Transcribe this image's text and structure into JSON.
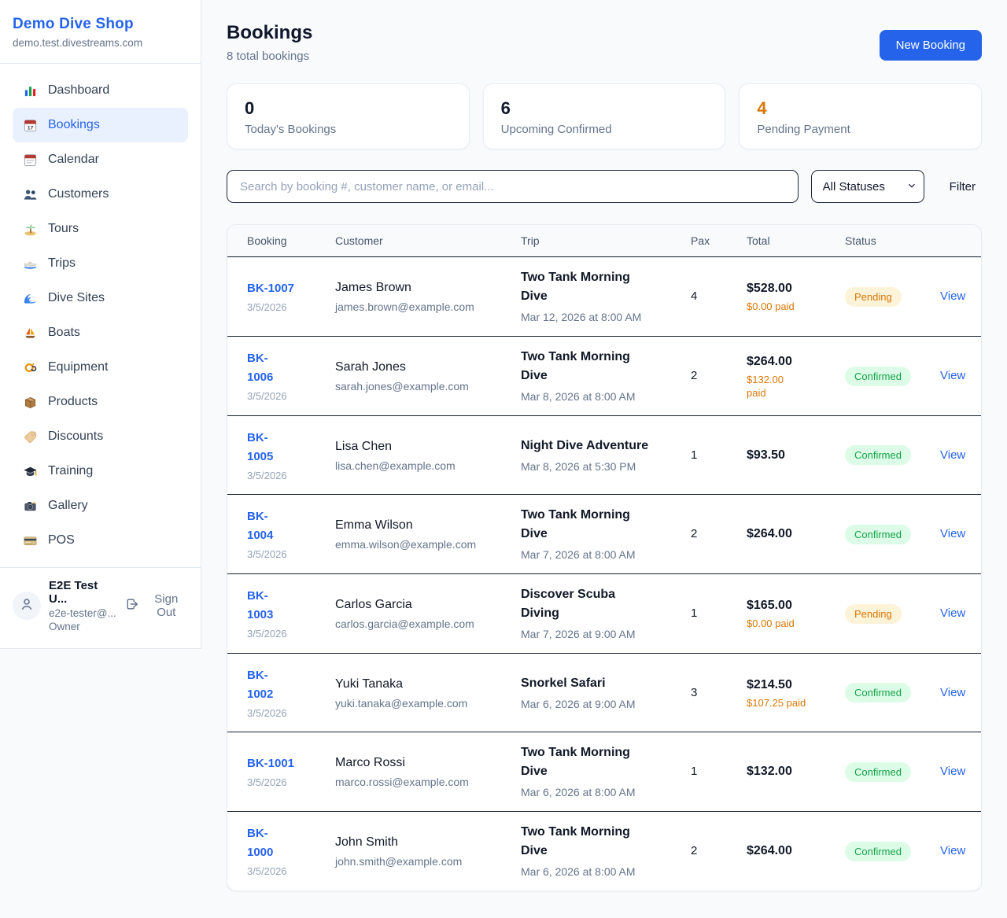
{
  "brand": {
    "name": "Demo Dive Shop",
    "domain": "demo.test.divestreams.com"
  },
  "sidebar": {
    "items": [
      {
        "icon": "dashboard-icon",
        "label": "Dashboard",
        "active": false
      },
      {
        "icon": "bookings-calendar-icon",
        "label": "Bookings",
        "active": true
      },
      {
        "icon": "calendar-icon",
        "label": "Calendar",
        "active": false
      },
      {
        "icon": "customers-icon",
        "label": "Customers",
        "active": false
      },
      {
        "icon": "tours-island-icon",
        "label": "Tours",
        "active": false
      },
      {
        "icon": "trips-speedboat-icon",
        "label": "Trips",
        "active": false
      },
      {
        "icon": "dive-sites-wave-icon",
        "label": "Dive Sites",
        "active": false
      },
      {
        "icon": "boats-sailboat-icon",
        "label": "Boats",
        "active": false
      },
      {
        "icon": "equipment-mask-icon",
        "label": "Equipment",
        "active": false
      },
      {
        "icon": "products-box-icon",
        "label": "Products",
        "active": false
      },
      {
        "icon": "discounts-tag-icon",
        "label": "Discounts",
        "active": false
      },
      {
        "icon": "training-cap-icon",
        "label": "Training",
        "active": false
      },
      {
        "icon": "gallery-camera-icon",
        "label": "Gallery",
        "active": false
      },
      {
        "icon": "pos-card-icon",
        "label": "POS",
        "active": false
      }
    ],
    "user": {
      "name": "E2E Test U...",
      "email": "e2e-tester@...",
      "role": "Owner",
      "sign_out": "Sign Out"
    }
  },
  "header": {
    "title": "Bookings",
    "subtitle": "8 total bookings",
    "new_booking_label": "New Booking"
  },
  "stats": [
    {
      "value": "0",
      "label": "Today's Bookings",
      "color": "#0f172a"
    },
    {
      "value": "6",
      "label": "Upcoming Confirmed",
      "color": "#0f172a"
    },
    {
      "value": "4",
      "label": "Pending Payment",
      "color": "#d97706"
    }
  ],
  "filters": {
    "search_placeholder": "Search by booking #, customer name, or email...",
    "status_select_value": "All Statuses",
    "filter_label": "Filter"
  },
  "table": {
    "columns": [
      "Booking",
      "Customer",
      "Trip",
      "Pax",
      "Total",
      "Status"
    ],
    "view_label": "View",
    "rows": [
      {
        "id_lines": [
          "BK-1007"
        ],
        "date": "3/5/2026",
        "customer": "James Brown",
        "email": "james.brown@example.com",
        "trip_lines": [
          "Two Tank Morning",
          "Dive"
        ],
        "trip_when": "Mar 12, 2026 at 8:00 AM",
        "pax": "4",
        "total": "$528.00",
        "paid_lines": [
          "$0.00 paid"
        ],
        "status": "Pending"
      },
      {
        "id_lines": [
          "BK-",
          "1006"
        ],
        "date": "3/5/2026",
        "customer": "Sarah Jones",
        "email": "sarah.jones@example.com",
        "trip_lines": [
          "Two Tank Morning",
          "Dive"
        ],
        "trip_when": "Mar 8, 2026 at 8:00 AM",
        "pax": "2",
        "total": "$264.00",
        "paid_lines": [
          "$132.00",
          "paid"
        ],
        "status": "Confirmed"
      },
      {
        "id_lines": [
          "BK-",
          "1005"
        ],
        "date": "3/5/2026",
        "customer": "Lisa Chen",
        "email": "lisa.chen@example.com",
        "trip_lines": [
          "Night Dive Adventure"
        ],
        "trip_when": "Mar 8, 2026 at 5:30 PM",
        "pax": "1",
        "total": "$93.50",
        "paid_lines": null,
        "status": "Confirmed"
      },
      {
        "id_lines": [
          "BK-",
          "1004"
        ],
        "date": "3/5/2026",
        "customer": "Emma Wilson",
        "email": "emma.wilson@example.com",
        "trip_lines": [
          "Two Tank Morning",
          "Dive"
        ],
        "trip_when": "Mar 7, 2026 at 8:00 AM",
        "pax": "2",
        "total": "$264.00",
        "paid_lines": null,
        "status": "Confirmed"
      },
      {
        "id_lines": [
          "BK-",
          "1003"
        ],
        "date": "3/5/2026",
        "customer": "Carlos Garcia",
        "email": "carlos.garcia@example.com",
        "trip_lines": [
          "Discover Scuba",
          "Diving"
        ],
        "trip_when": "Mar 7, 2026 at 9:00 AM",
        "pax": "1",
        "total": "$165.00",
        "paid_lines": [
          "$0.00 paid"
        ],
        "status": "Pending"
      },
      {
        "id_lines": [
          "BK-",
          "1002"
        ],
        "date": "3/5/2026",
        "customer": "Yuki Tanaka",
        "email": "yuki.tanaka@example.com",
        "trip_lines": [
          "Snorkel Safari"
        ],
        "trip_when": "Mar 6, 2026 at 9:00 AM",
        "pax": "3",
        "total": "$214.50",
        "paid_lines": [
          "$107.25 paid"
        ],
        "status": "Confirmed"
      },
      {
        "id_lines": [
          "BK-1001"
        ],
        "date": "3/5/2026",
        "customer": "Marco Rossi",
        "email": "marco.rossi@example.com",
        "trip_lines": [
          "Two Tank Morning",
          "Dive"
        ],
        "trip_when": "Mar 6, 2026 at 8:00 AM",
        "pax": "1",
        "total": "$132.00",
        "paid_lines": null,
        "status": "Confirmed"
      },
      {
        "id_lines": [
          "BK-",
          "1000"
        ],
        "date": "3/5/2026",
        "customer": "John Smith",
        "email": "john.smith@example.com",
        "trip_lines": [
          "Two Tank Morning",
          "Dive"
        ],
        "trip_when": "Mar 6, 2026 at 8:00 AM",
        "pax": "2",
        "total": "$264.00",
        "paid_lines": null,
        "status": "Confirmed"
      }
    ]
  },
  "colors": {
    "accent_blue": "#2563eb",
    "pending_text": "#d97706",
    "pending_bg": "#fdf3d8",
    "confirmed_text": "#16a34a",
    "confirmed_bg": "#dcfce7",
    "page_bg": "#f8fafc"
  }
}
